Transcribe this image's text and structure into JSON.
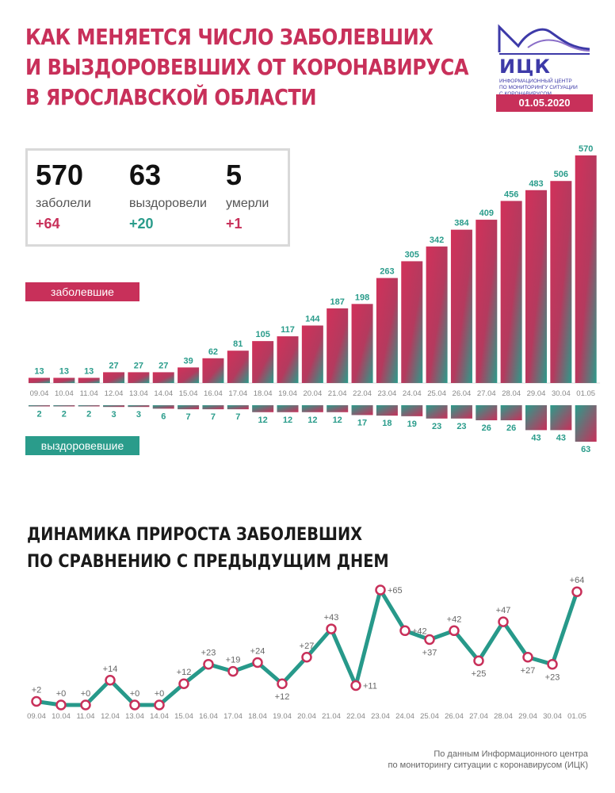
{
  "header": {
    "title_lines": [
      "КАК МЕНЯЕТСЯ ЧИСЛО ЗАБОЛЕВШИХ",
      "И ВЫЗДОРОВЕВШИХ ОТ КОРОНАВИРУСА",
      "В ЯРОСЛАВСКОЙ ОБЛАСТИ"
    ]
  },
  "logo": {
    "abbr": "ИЦК",
    "subtitle": "ИНФОРМАЦИОННЫЙ ЦЕНТР\nПО МОНИТОРИНГУ СИТУАЦИИ\nС КОРОНАВИРУСОМ",
    "date": "01.05.2020"
  },
  "summary": {
    "infected": {
      "value": "570",
      "label": "заболели",
      "delta": "+64"
    },
    "recovered": {
      "value": "63",
      "label": "выздоровели",
      "delta": "+20"
    },
    "died": {
      "value": "5",
      "label": "умерли",
      "delta": "+1"
    }
  },
  "tags": {
    "infected": "заболевшие",
    "recovered": "выздоровевшие"
  },
  "colors": {
    "accent": "#c8305a",
    "teal": "#2a9c8b",
    "logo_blue": "#3d3aa8",
    "line": "#27998a",
    "marker": "#c8305a"
  },
  "chart_data": [
    {
      "type": "bar",
      "categories": [
        "09.04",
        "10.04",
        "11.04",
        "12.04",
        "13.04",
        "14.04",
        "15.04",
        "16.04",
        "17.04",
        "18.04",
        "19.04",
        "20.04",
        "21.04",
        "22.04",
        "23.04",
        "24.04",
        "25.04",
        "26.04",
        "27.04",
        "28.04",
        "29.04",
        "30.04",
        "01.05"
      ],
      "series": [
        {
          "name": "заболевшие",
          "values": [
            13,
            13,
            13,
            27,
            27,
            27,
            39,
            62,
            81,
            105,
            117,
            144,
            187,
            198,
            263,
            305,
            342,
            384,
            409,
            456,
            483,
            506,
            570
          ]
        },
        {
          "name": "выздоровевшие",
          "values": [
            2,
            2,
            2,
            3,
            3,
            6,
            7,
            7,
            7,
            12,
            12,
            12,
            12,
            17,
            18,
            19,
            23,
            23,
            26,
            26,
            43,
            43,
            63
          ]
        }
      ]
    },
    {
      "type": "line",
      "title": "ДИНАМИКА ПРИРОСТА ЗАБОЛЕВШИХ\nПО СРАВНЕНИЮ С ПРЕДЫДУЩИМ ДНЕМ",
      "categories": [
        "09.04",
        "10.04",
        "11.04",
        "12.04",
        "13.04",
        "14.04",
        "15.04",
        "16.04",
        "17.04",
        "18.04",
        "19.04",
        "20.04",
        "21.04",
        "22.04",
        "23.04",
        "24.04",
        "25.04",
        "26.04",
        "27.04",
        "28.04",
        "29.04",
        "30.04",
        "01.05"
      ],
      "values": [
        2,
        0,
        0,
        14,
        0,
        0,
        12,
        23,
        19,
        24,
        12,
        27,
        43,
        11,
        65,
        42,
        37,
        42,
        25,
        47,
        27,
        23,
        64
      ],
      "labels": [
        "+2",
        "+0",
        "+0",
        "+14",
        "+0",
        "+0",
        "+12",
        "+23",
        "+19",
        "+24",
        "+12",
        "+27",
        "+43",
        "+11",
        "+65",
        "+42",
        "+37",
        "+42",
        "+25",
        "+47",
        "+27",
        "+23",
        "+64"
      ],
      "label_placement": [
        "above",
        "above",
        "above",
        "above",
        "above",
        "above",
        "above",
        "above",
        "above",
        "above",
        "below",
        "above",
        "above",
        "right",
        "right",
        "right",
        "below",
        "above",
        "below",
        "above",
        "below",
        "below",
        "above"
      ]
    }
  ],
  "source": {
    "line1": "По данным Информационного центра",
    "line2": "по мониторингу ситуации с коронавирусом (ИЦК)"
  }
}
